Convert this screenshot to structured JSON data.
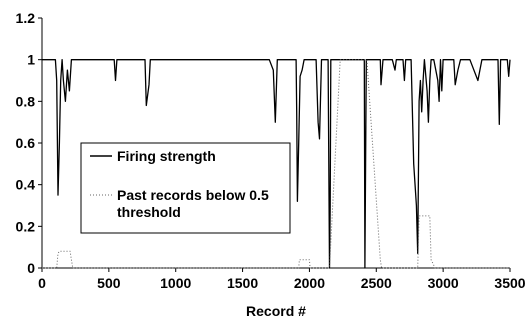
{
  "chart_data": {
    "type": "line",
    "title": "",
    "xlabel": "Record #",
    "ylabel": "",
    "xlim": [
      0,
      3500
    ],
    "ylim": [
      0,
      1.2
    ],
    "xticks": [
      "0",
      "500",
      "1000",
      "1500",
      "2000",
      "2500",
      "3000",
      "3500"
    ],
    "yticks": [
      "0",
      "0.2",
      "0.4",
      "0.6",
      "0.8",
      "1",
      "1.2"
    ],
    "grid": false,
    "legend_position": "left-middle",
    "series": [
      {
        "name": "Firing strength",
        "style": "solid",
        "color": "#000000",
        "x": [
          0,
          100,
          110,
          120,
          130,
          140,
          150,
          160,
          175,
          190,
          205,
          220,
          240,
          540,
          550,
          560,
          770,
          780,
          800,
          810,
          1700,
          1730,
          1745,
          1760,
          1900,
          1905,
          1910,
          1920,
          1930,
          1945,
          1960,
          2050,
          2065,
          2075,
          2090,
          2140,
          2145,
          2150,
          2155,
          2160,
          2230,
          2410,
          2415,
          2420,
          2425,
          2430,
          2530,
          2535,
          2550,
          2620,
          2640,
          2650,
          2700,
          2710,
          2720,
          2760,
          2780,
          2800,
          2810,
          2820,
          2830,
          2840,
          2850,
          2860,
          2880,
          2890,
          2900,
          2910,
          2930,
          2960,
          2970,
          2980,
          2990,
          3000,
          3080,
          3090,
          3110,
          3130,
          3200,
          3260,
          3290,
          3410,
          3420,
          3430,
          3480,
          3490,
          3500
        ],
        "y": [
          1,
          1,
          0.9,
          0.35,
          0.6,
          0.9,
          1,
          0.9,
          0.8,
          0.95,
          0.85,
          1,
          1,
          1,
          0.9,
          1,
          1,
          0.78,
          0.88,
          1,
          1,
          0.95,
          0.7,
          1,
          1,
          0.75,
          0.32,
          0.6,
          0.92,
          0.95,
          1,
          1,
          0.7,
          0.62,
          1,
          1,
          0.5,
          0,
          0.3,
          1,
          1,
          1,
          0,
          0.5,
          1,
          1,
          1,
          0.88,
          1,
          1,
          0.95,
          1,
          1,
          0.9,
          1,
          1,
          0.5,
          0.3,
          0.07,
          0.8,
          0.9,
          0.75,
          0.9,
          1,
          0.85,
          0.7,
          0.9,
          1,
          1,
          0.9,
          0.8,
          1,
          0.85,
          1,
          1,
          0.88,
          0.95,
          1,
          1,
          0.9,
          1,
          1,
          0.69,
          1,
          1,
          0.92,
          1
        ]
      },
      {
        "name": "Past records below 0.5\nthreshold",
        "style": "dotted",
        "color": "#666666",
        "x": [
          0,
          100,
          110,
          120,
          130,
          210,
          220,
          230,
          1920,
          1925,
          2000,
          2005,
          2140,
          2150,
          2230,
          2240,
          2410,
          2420,
          2430,
          2530,
          2540,
          2800,
          2810,
          2820,
          2830,
          2890,
          2900,
          2910,
          2940,
          3500
        ],
        "y": [
          0,
          0,
          0,
          0.07,
          0.08,
          0.08,
          0.04,
          0,
          0,
          0.04,
          0.04,
          0,
          0,
          0,
          1,
          1,
          1,
          1,
          1,
          0.04,
          0,
          0,
          0,
          0.25,
          0.25,
          0.25,
          0.25,
          0.04,
          0,
          0
        ]
      }
    ]
  }
}
